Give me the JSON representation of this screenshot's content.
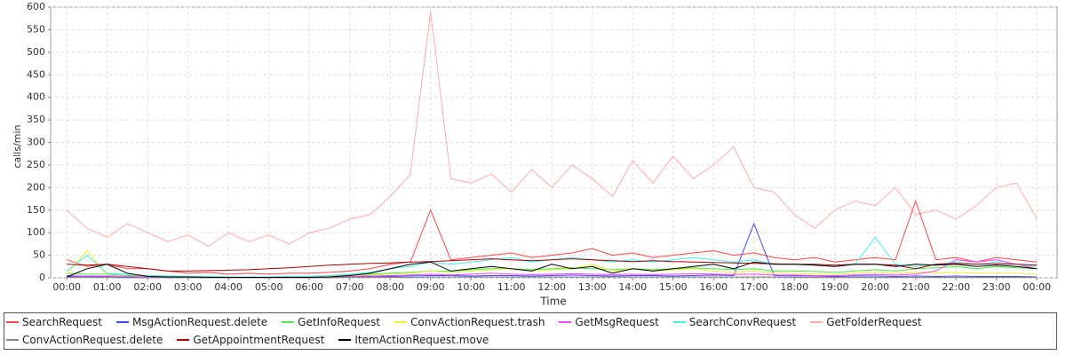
{
  "chart_data": {
    "type": "line",
    "x_label": "Time",
    "y_label": "calls/min",
    "x": [
      0,
      0.5,
      1,
      1.5,
      2,
      2.5,
      3,
      3.5,
      4,
      4.5,
      5,
      5.5,
      6,
      6.5,
      7,
      7.5,
      8,
      8.5,
      9,
      9.5,
      10,
      10.5,
      11,
      11.5,
      12,
      12.5,
      13,
      13.5,
      14,
      14.5,
      15,
      15.5,
      16,
      16.5,
      17,
      17.5,
      18,
      18.5,
      19,
      19.5,
      20,
      20.5,
      21,
      21.5,
      22,
      22.5,
      23,
      23.5,
      24
    ],
    "xlim": [
      -0.4,
      24.5
    ],
    "xticks": [
      {
        "value": 0,
        "label": "00:00"
      },
      {
        "value": 1,
        "label": "01:00"
      },
      {
        "value": 2,
        "label": "02:00"
      },
      {
        "value": 3,
        "label": "03:00"
      },
      {
        "value": 4,
        "label": "04:00"
      },
      {
        "value": 5,
        "label": "05:00"
      },
      {
        "value": 6,
        "label": "06:00"
      },
      {
        "value": 7,
        "label": "07:00"
      },
      {
        "value": 8,
        "label": "08:00"
      },
      {
        "value": 9,
        "label": "09:00"
      },
      {
        "value": 10,
        "label": "10:00"
      },
      {
        "value": 11,
        "label": "11:00"
      },
      {
        "value": 12,
        "label": "12:00"
      },
      {
        "value": 13,
        "label": "13:00"
      },
      {
        "value": 14,
        "label": "14:00"
      },
      {
        "value": 15,
        "label": "15:00"
      },
      {
        "value": 16,
        "label": "16:00"
      },
      {
        "value": 17,
        "label": "17:00"
      },
      {
        "value": 18,
        "label": "18:00"
      },
      {
        "value": 19,
        "label": "19:00"
      },
      {
        "value": 20,
        "label": "20:00"
      },
      {
        "value": 21,
        "label": "21:00"
      },
      {
        "value": 22,
        "label": "22:00"
      },
      {
        "value": 23,
        "label": "23:00"
      },
      {
        "value": 24,
        "label": "00:00"
      }
    ],
    "ylim": [
      0,
      600
    ],
    "yticks": [
      0,
      50,
      100,
      150,
      200,
      250,
      300,
      350,
      400,
      450,
      500,
      550,
      600
    ],
    "grid": true,
    "series": [
      {
        "name": "SearchRequest",
        "color": "#ff4444",
        "values": [
          40,
          25,
          30,
          20,
          20,
          15,
          10,
          12,
          8,
          10,
          8,
          10,
          10,
          12,
          15,
          20,
          30,
          35,
          150,
          40,
          45,
          50,
          55,
          45,
          50,
          55,
          65,
          50,
          55,
          45,
          50,
          55,
          60,
          50,
          55,
          45,
          40,
          45,
          35,
          40,
          45,
          40,
          170,
          40,
          45,
          35,
          45,
          40,
          35
        ]
      },
      {
        "name": "MsgActionRequest.delete",
        "color": "#4444ff",
        "values": [
          3,
          2,
          2,
          1,
          1,
          1,
          1,
          1,
          1,
          1,
          1,
          1,
          1,
          1,
          2,
          2,
          3,
          4,
          5,
          5,
          4,
          5,
          5,
          4,
          5,
          6,
          5,
          4,
          5,
          5,
          4,
          5,
          6,
          5,
          120,
          5,
          4,
          4,
          3,
          4,
          4,
          3,
          4,
          3,
          4,
          3,
          3,
          3,
          2
        ]
      },
      {
        "name": "GetInfoRequest",
        "color": "#44ee44",
        "values": [
          10,
          8,
          8,
          5,
          5,
          4,
          3,
          3,
          2,
          2,
          2,
          3,
          3,
          4,
          6,
          8,
          10,
          12,
          15,
          15,
          18,
          20,
          20,
          18,
          20,
          22,
          20,
          18,
          20,
          18,
          20,
          22,
          20,
          18,
          20,
          15,
          15,
          14,
          12,
          15,
          18,
          15,
          20,
          22,
          25,
          20,
          25,
          22,
          20
        ]
      },
      {
        "name": "ConvActionRequest.trash",
        "color": "#eeee33",
        "values": [
          8,
          60,
          5,
          3,
          3,
          2,
          2,
          2,
          1,
          1,
          1,
          2,
          2,
          3,
          4,
          6,
          8,
          10,
          15,
          12,
          15,
          18,
          20,
          15,
          18,
          20,
          30,
          15,
          20,
          15,
          18,
          20,
          15,
          12,
          15,
          10,
          10,
          8,
          8,
          10,
          12,
          10,
          12,
          10,
          12,
          10,
          10,
          10,
          8
        ]
      },
      {
        "name": "GetMsgRequest",
        "color": "#ff44ff",
        "values": [
          5,
          4,
          4,
          3,
          2,
          2,
          1,
          1,
          1,
          1,
          1,
          1,
          2,
          2,
          3,
          4,
          5,
          6,
          8,
          6,
          8,
          10,
          8,
          7,
          8,
          9,
          8,
          7,
          8,
          7,
          8,
          9,
          8,
          7,
          8,
          6,
          6,
          5,
          5,
          6,
          7,
          6,
          8,
          15,
          40,
          35,
          40,
          30,
          20
        ]
      },
      {
        "name": "SearchConvRequest",
        "color": "#44eeee",
        "values": [
          15,
          50,
          10,
          8,
          5,
          4,
          3,
          3,
          2,
          2,
          2,
          3,
          3,
          5,
          8,
          12,
          20,
          25,
          35,
          30,
          35,
          40,
          45,
          35,
          40,
          45,
          40,
          35,
          40,
          35,
          40,
          45,
          40,
          35,
          40,
          30,
          30,
          28,
          25,
          30,
          90,
          30,
          25,
          30,
          35,
          30,
          35,
          30,
          25
        ]
      },
      {
        "name": "GetFolderRequest",
        "color": "#ffaaaa",
        "values": [
          150,
          110,
          90,
          120,
          100,
          80,
          95,
          70,
          100,
          80,
          95,
          75,
          100,
          110,
          130,
          140,
          180,
          230,
          590,
          220,
          210,
          230,
          190,
          240,
          200,
          250,
          220,
          180,
          260,
          210,
          270,
          220,
          250,
          290,
          200,
          190,
          140,
          110,
          150,
          170,
          160,
          200,
          140,
          150,
          130,
          160,
          200,
          210,
          130
        ]
      },
      {
        "name": "ConvActionRequest.delete",
        "color": "#888888",
        "values": [
          1,
          1,
          1,
          0,
          0,
          0,
          0,
          0,
          0,
          0,
          0,
          0,
          0,
          0,
          1,
          1,
          1,
          1,
          2,
          2,
          2,
          2,
          2,
          2,
          2,
          2,
          2,
          2,
          2,
          2,
          2,
          2,
          2,
          2,
          2,
          2,
          1,
          1,
          1,
          1,
          1,
          1,
          1,
          1,
          1,
          1,
          1,
          1,
          1
        ]
      },
      {
        "name": "GetAppointmentRequest",
        "color": "#aa0000",
        "values": [
          30,
          28,
          30,
          25,
          20,
          15,
          15,
          16,
          17,
          18,
          20,
          22,
          25,
          28,
          30,
          32,
          33,
          35,
          36,
          38,
          40,
          42,
          40,
          38,
          40,
          42,
          40,
          38,
          36,
          38,
          36,
          35,
          34,
          33,
          32,
          31,
          30,
          30,
          28,
          30,
          30,
          28,
          20,
          30,
          32,
          30,
          31,
          30,
          28
        ]
      },
      {
        "name": "ItemActionRequest.move",
        "color": "#000000",
        "values": [
          2,
          20,
          30,
          10,
          3,
          2,
          2,
          1,
          1,
          1,
          1,
          1,
          1,
          2,
          5,
          10,
          20,
          30,
          35,
          15,
          20,
          25,
          20,
          15,
          30,
          20,
          25,
          10,
          20,
          15,
          20,
          25,
          30,
          20,
          35,
          30,
          30,
          28,
          25,
          30,
          30,
          25,
          30,
          28,
          30,
          25,
          28,
          25,
          20
        ]
      }
    ]
  }
}
